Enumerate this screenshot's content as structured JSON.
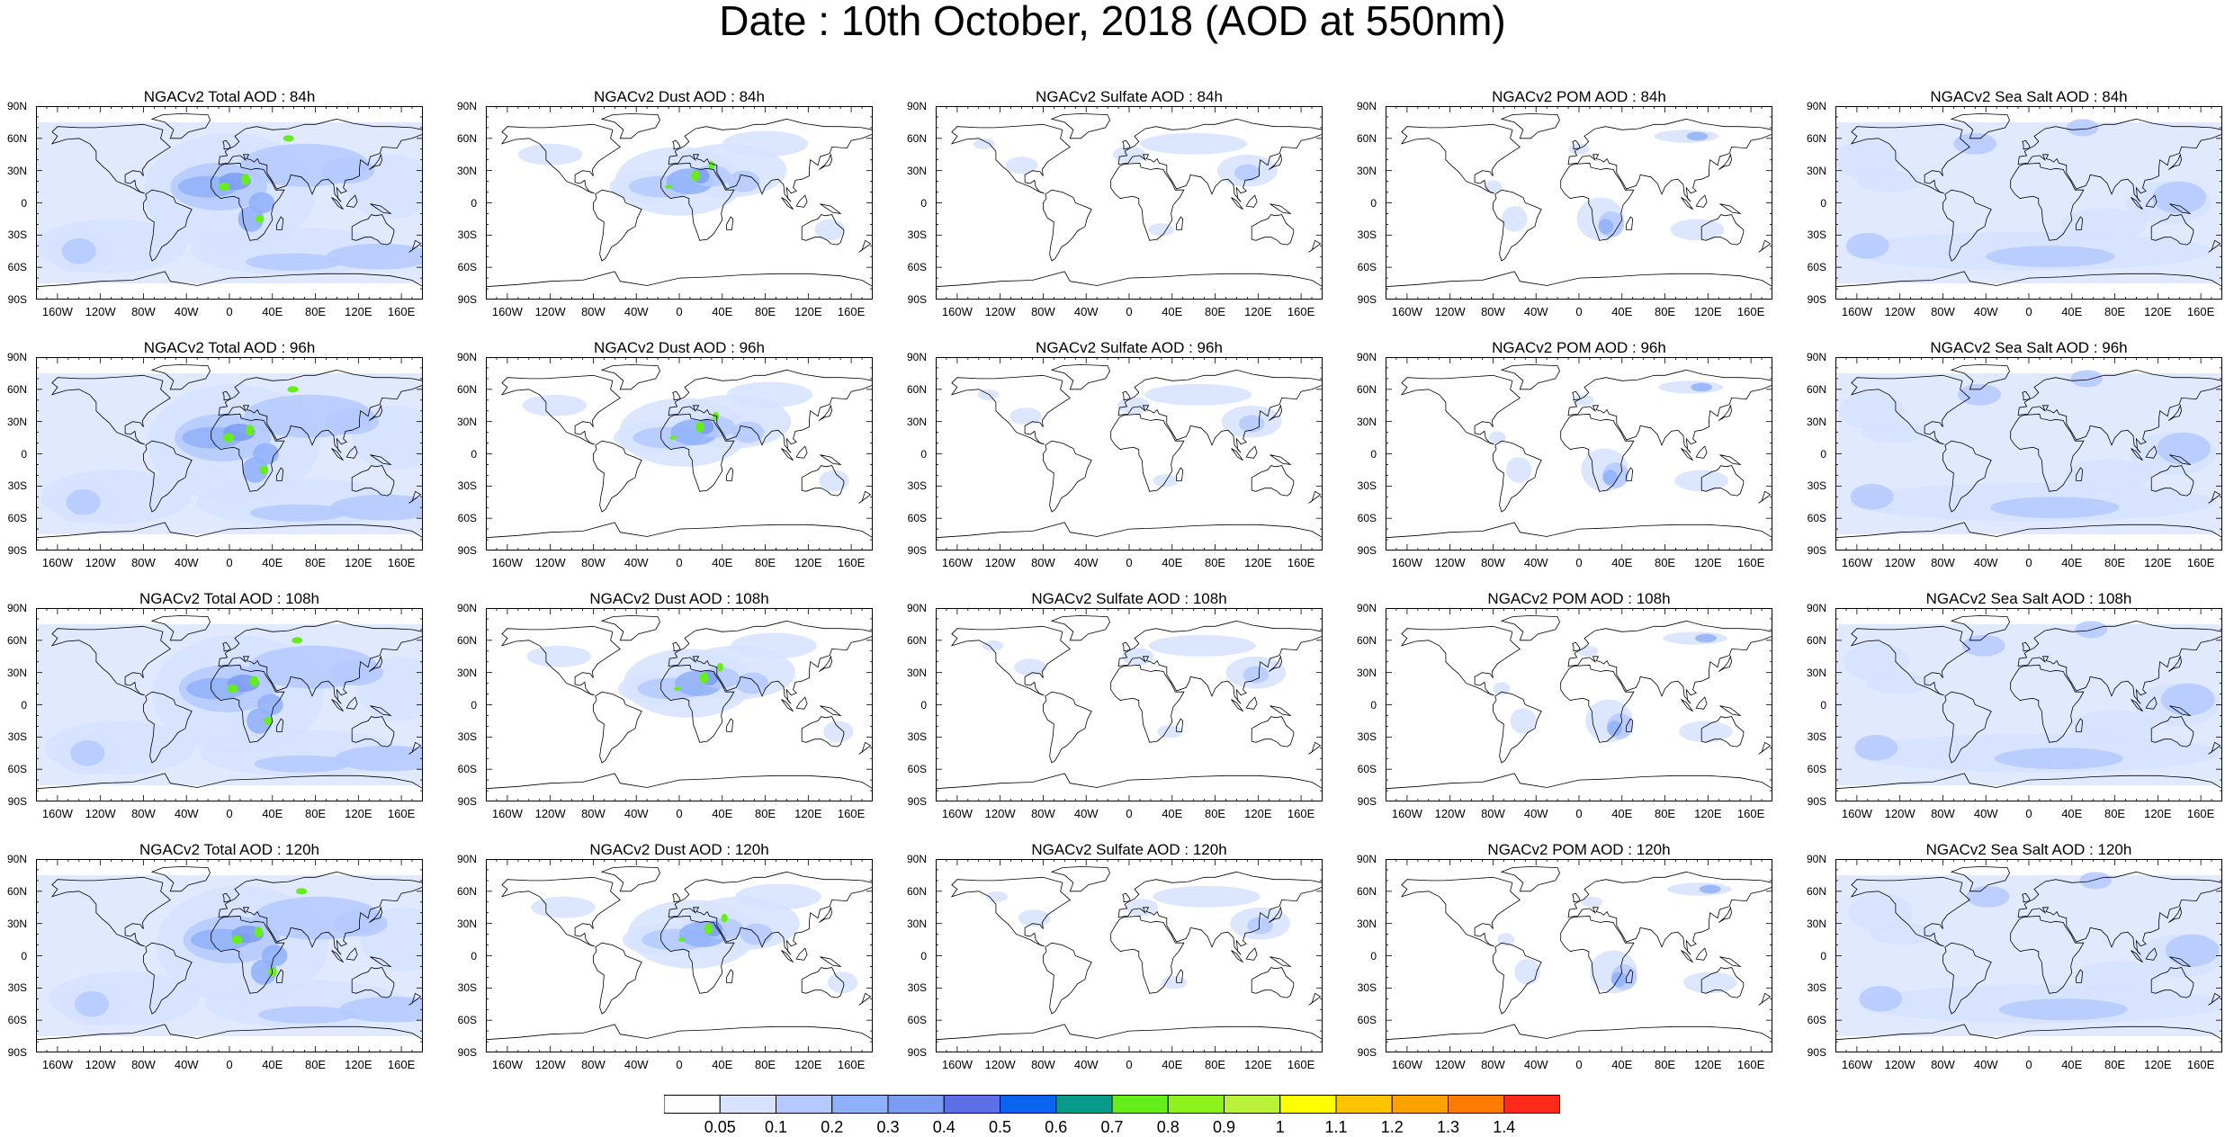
{
  "title": "Date : 10th October, 2018 (AOD at 550nm)",
  "lat_labels": [
    "90N",
    "60N",
    "30N",
    "0",
    "30S",
    "60S",
    "90S"
  ],
  "lon_labels": [
    "160W",
    "120W",
    "80W",
    "40W",
    "0",
    "40E",
    "80E",
    "120E",
    "160E"
  ],
  "panels": [
    {
      "title": "NGACv2 Total AOD : 84h",
      "species": "total"
    },
    {
      "title": "NGACv2 Dust AOD : 84h",
      "species": "dust"
    },
    {
      "title": "NGACv2 Sulfate AOD : 84h",
      "species": "sulfate"
    },
    {
      "title": "NGACv2 POM AOD : 84h",
      "species": "pom"
    },
    {
      "title": "NGACv2 Sea Salt AOD : 84h",
      "species": "seasalt"
    },
    {
      "title": "NGACv2 Total AOD : 96h",
      "species": "total"
    },
    {
      "title": "NGACv2 Dust AOD : 96h",
      "species": "dust"
    },
    {
      "title": "NGACv2 Sulfate AOD : 96h",
      "species": "sulfate"
    },
    {
      "title": "NGACv2 POM AOD : 96h",
      "species": "pom"
    },
    {
      "title": "NGACv2 Sea Salt AOD : 96h",
      "species": "seasalt"
    },
    {
      "title": "NGACv2 Total AOD : 108h",
      "species": "total"
    },
    {
      "title": "NGACv2 Dust AOD : 108h",
      "species": "dust"
    },
    {
      "title": "NGACv2 Sulfate AOD : 108h",
      "species": "sulfate"
    },
    {
      "title": "NGACv2 POM AOD : 108h",
      "species": "pom"
    },
    {
      "title": "NGACv2 Sea Salt AOD : 108h",
      "species": "seasalt"
    },
    {
      "title": "NGACv2 Total AOD : 120h",
      "species": "total"
    },
    {
      "title": "NGACv2 Dust AOD : 120h",
      "species": "dust"
    },
    {
      "title": "NGACv2 Sulfate AOD : 120h",
      "species": "sulfate"
    },
    {
      "title": "NGACv2 POM AOD : 120h",
      "species": "pom"
    },
    {
      "title": "NGACv2 Sea Salt  AOD : 120h",
      "species": "seasalt"
    }
  ],
  "colorbar": {
    "labels": [
      "0.05",
      "0.1",
      "0.2",
      "0.3",
      "0.4",
      "0.5",
      "0.6",
      "0.7",
      "0.8",
      "0.9",
      "1",
      "1.1",
      "1.2",
      "1.3",
      "1.4"
    ],
    "colors": [
      "#ffffff",
      "#d6e2ff",
      "#b5c9ff",
      "#8fb0fa",
      "#7b9cf2",
      "#5c6fe8",
      "#0a64f0",
      "#089a8a",
      "#66ee1a",
      "#8ef21c",
      "#baf23a",
      "#ffff00",
      "#ffc400",
      "#ffa200",
      "#ff7a00",
      "#ff2a1a"
    ]
  },
  "chart_data": {
    "type": "heatmap",
    "title": "Date : 10th October, 2018 (AOD at 550nm)",
    "variable": "AOD at 550nm",
    "forecast_hours": [
      "84h",
      "96h",
      "108h",
      "120h"
    ],
    "species": [
      "Total",
      "Dust",
      "Sulfate",
      "POM",
      "Sea Salt"
    ],
    "x_ticks": [
      "160W",
      "120W",
      "80W",
      "40W",
      "0",
      "40E",
      "80E",
      "120E",
      "160E"
    ],
    "y_ticks": [
      "90N",
      "60N",
      "30N",
      "0",
      "30S",
      "60S",
      "90S"
    ],
    "color_levels": [
      0.05,
      0.1,
      0.2,
      0.3,
      0.4,
      0.5,
      0.6,
      0.7,
      0.8,
      0.9,
      1,
      1.1,
      1.2,
      1.3,
      1.4
    ]
  }
}
